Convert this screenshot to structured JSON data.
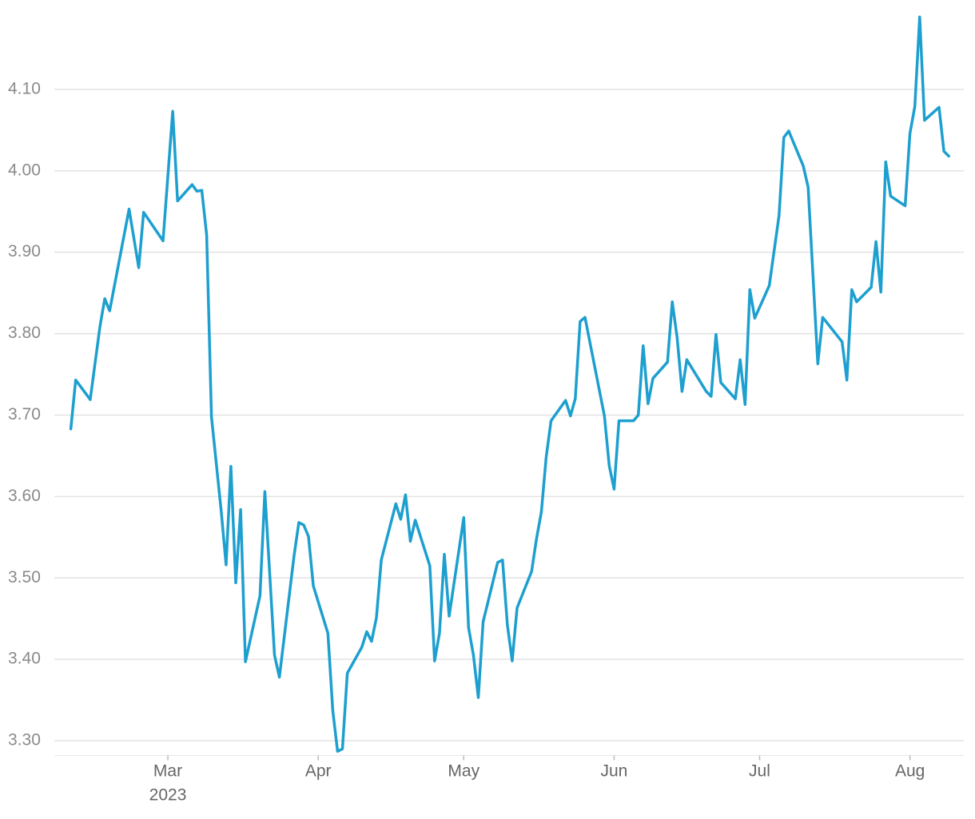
{
  "chart_data": {
    "type": "line",
    "year_label": "2023",
    "x": [
      40,
      41,
      44,
      46,
      47,
      48,
      52,
      54,
      55,
      59,
      61,
      62,
      65,
      66,
      67,
      68,
      69,
      71,
      72,
      73,
      74,
      75,
      76,
      79,
      80,
      82,
      83,
      86,
      87,
      88,
      89,
      90,
      93,
      94,
      95,
      96,
      97,
      100,
      101,
      102,
      103,
      104,
      107,
      108,
      109,
      110,
      111,
      114,
      115,
      116,
      117,
      118,
      121,
      122,
      123,
      124,
      125,
      128,
      129,
      130,
      131,
      132,
      135,
      136,
      137,
      138,
      139,
      142,
      143,
      144,
      145,
      146,
      150,
      151,
      152,
      153,
      156,
      157,
      158,
      159,
      160,
      163,
      164,
      165,
      166,
      167,
      171,
      172,
      173,
      174,
      177,
      178,
      179,
      180,
      181,
      184,
      186,
      187,
      188,
      191,
      192,
      194,
      195,
      199,
      200,
      201,
      202,
      205,
      206,
      207,
      208,
      209,
      212,
      213,
      214,
      215,
      216,
      219,
      220,
      221
    ],
    "series": [
      {
        "color": "#1d9fcf",
        "values": [
          3.683,
          3.743,
          3.719,
          3.809,
          3.843,
          3.828,
          3.953,
          3.881,
          3.949,
          3.914,
          4.073,
          3.963,
          3.983,
          3.975,
          3.976,
          3.921,
          3.698,
          3.582,
          3.516,
          3.637,
          3.494,
          3.584,
          3.397,
          3.478,
          3.606,
          3.405,
          3.378,
          3.526,
          3.568,
          3.565,
          3.551,
          3.49,
          3.432,
          3.337,
          3.287,
          3.29,
          3.383,
          3.415,
          3.434,
          3.422,
          3.451,
          3.522,
          3.591,
          3.572,
          3.602,
          3.545,
          3.571,
          3.515,
          3.398,
          3.432,
          3.529,
          3.453,
          3.574,
          3.439,
          3.405,
          3.353,
          3.446,
          3.519,
          3.522,
          3.442,
          3.398,
          3.463,
          3.508,
          3.548,
          3.581,
          3.648,
          3.693,
          3.718,
          3.699,
          3.72,
          3.815,
          3.82,
          3.699,
          3.638,
          3.609,
          3.693,
          3.693,
          3.7,
          3.785,
          3.714,
          3.745,
          3.765,
          3.839,
          3.795,
          3.729,
          3.768,
          3.729,
          3.723,
          3.799,
          3.74,
          3.72,
          3.768,
          3.713,
          3.854,
          3.819,
          3.859,
          3.945,
          4.041,
          4.049,
          4.006,
          3.98,
          3.763,
          3.82,
          3.79,
          3.743,
          3.854,
          3.839,
          3.857,
          3.913,
          3.851,
          4.011,
          3.969,
          3.957,
          4.046,
          4.079,
          4.189,
          4.062,
          4.078,
          4.024,
          4.018
        ]
      }
    ],
    "xlim": [
      36.6,
      224.1
    ],
    "xticks": [
      {
        "value": 60,
        "label": "Mar"
      },
      {
        "value": 91,
        "label": "Apr"
      },
      {
        "value": 121,
        "label": "May"
      },
      {
        "value": 152,
        "label": "Jun"
      },
      {
        "value": 182,
        "label": "Jul"
      },
      {
        "value": 213,
        "label": "Aug"
      }
    ],
    "ylim": [
      3.28,
      4.2
    ],
    "yticks": [
      {
        "value": 3.3,
        "label": "3.30"
      },
      {
        "value": 3.4,
        "label": "3.40"
      },
      {
        "value": 3.5,
        "label": "3.50"
      },
      {
        "value": 3.6,
        "label": "3.60"
      },
      {
        "value": 3.7,
        "label": "3.70"
      },
      {
        "value": 3.8,
        "label": "3.80"
      },
      {
        "value": 3.9,
        "label": "3.90"
      },
      {
        "value": 4.0,
        "label": "4.00"
      },
      {
        "value": 4.1,
        "label": "4.10"
      }
    ],
    "grid": true
  }
}
